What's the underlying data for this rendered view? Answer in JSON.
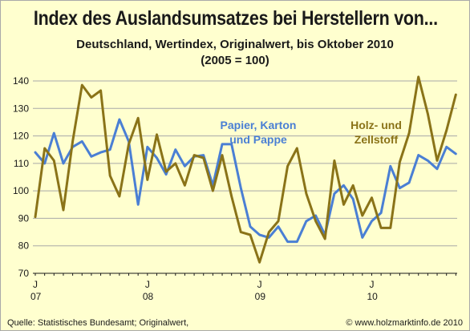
{
  "header": {
    "title": "Index des Auslandsumsatzes bei Herstellern von...",
    "subtitle_line1": "Deutschland, Wertindex, Originalwert, bis Oktober 2010",
    "subtitle_line2": "(2005 = 100)"
  },
  "footer": {
    "source": "Quelle: Statistisches Bundesamt; Originalwert,",
    "copyright": "© www.holzmarktinfo.de 2010"
  },
  "colors": {
    "background": "#ffffcf",
    "papier": "#4a7fd4",
    "holz": "#8a7318",
    "grid": "#a8a8a8"
  },
  "chart_data": {
    "type": "line",
    "ylim": [
      70,
      140
    ],
    "yticks": [
      70,
      80,
      90,
      100,
      110,
      120,
      130,
      140
    ],
    "x_tick_labels": [
      {
        "month": "J",
        "year": "07"
      },
      {
        "month": "J",
        "year": "08"
      },
      {
        "month": "J",
        "year": "09"
      },
      {
        "month": "J",
        "year": "10"
      }
    ],
    "x_start": "2007-01",
    "x_end": "2010-10",
    "grid": "horizontal",
    "series": [
      {
        "name": "Papier, Karton und Pappe",
        "label_lines": [
          "Papier, Karton",
          "und Pappe"
        ],
        "color": "#4a7fd4",
        "values": [
          114,
          110,
          121,
          110,
          116,
          118,
          112.5,
          114,
          115,
          126,
          118,
          95,
          116,
          112,
          106,
          115,
          109,
          112.5,
          113,
          102,
          117,
          117,
          101,
          87,
          84,
          83,
          87,
          81.5,
          81.5,
          89,
          91,
          84,
          99,
          102,
          97,
          83,
          89,
          92,
          109,
          101,
          103,
          113,
          111,
          108,
          116,
          113.5
        ]
      },
      {
        "name": "Holz- und Zellstoff",
        "label_lines": [
          "Holz- und",
          "Zellstoff"
        ],
        "color": "#8a7318",
        "values": [
          90.5,
          115.5,
          111,
          93,
          118,
          138.5,
          134,
          136.5,
          105.5,
          98,
          117,
          126.5,
          104,
          120.5,
          107,
          110,
          102,
          113,
          112,
          100,
          113,
          98,
          85,
          84,
          74,
          85,
          89,
          109,
          115.5,
          99,
          89,
          82.5,
          111,
          95,
          102,
          91,
          97.5,
          86.5,
          86.5,
          110.5,
          121,
          141.5,
          128,
          111,
          122,
          135
        ]
      }
    ]
  }
}
